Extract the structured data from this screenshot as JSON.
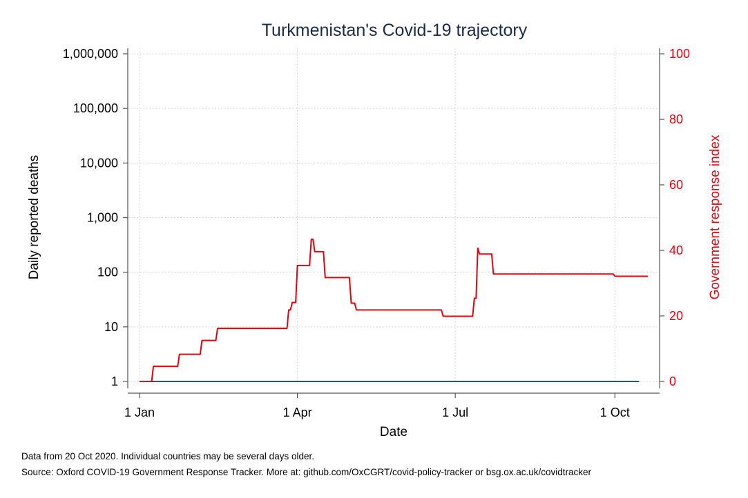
{
  "chart_data": {
    "type": "line",
    "title": "Turkmenistan's Covid-19 trajectory",
    "xlabel": "Date",
    "ylabel_left": "Daily reported deaths",
    "ylabel_right": "Government response index",
    "x_ticks": [
      "1 Jan",
      "1 Apr",
      "1 Jul",
      "1 Oct"
    ],
    "y_left_ticks": [
      "1",
      "10",
      "100",
      "1,000",
      "10,000",
      "100,000",
      "1,000,000"
    ],
    "y_left_scale": "log",
    "y_left_range": [
      1,
      1000000
    ],
    "y_right_ticks": [
      "0",
      "20",
      "40",
      "60",
      "80",
      "100"
    ],
    "y_right_range": [
      0,
      100
    ],
    "x_range": [
      "2020-01-01",
      "2020-10-20"
    ],
    "grid": true,
    "colors": {
      "deaths": "#1a5a96",
      "index": "#e8000b",
      "title": "#1a2b4a"
    },
    "series": [
      {
        "axis": "left",
        "points": [
          [
            "2020-01-01",
            1
          ],
          [
            "2020-10-15",
            1
          ]
        ]
      },
      {
        "axis": "right",
        "points": [
          [
            "2020-01-01",
            0
          ],
          [
            "2020-01-08",
            0
          ],
          [
            "2020-01-09",
            4.6
          ],
          [
            "2020-01-23",
            4.6
          ],
          [
            "2020-01-24",
            8.3
          ],
          [
            "2020-02-05",
            8.3
          ],
          [
            "2020-02-06",
            12.5
          ],
          [
            "2020-02-14",
            12.5
          ],
          [
            "2020-02-15",
            16.2
          ],
          [
            "2020-03-26",
            16.2
          ],
          [
            "2020-03-27",
            21.8
          ],
          [
            "2020-03-28",
            21.8
          ],
          [
            "2020-03-29",
            24.1
          ],
          [
            "2020-03-31",
            24.1
          ],
          [
            "2020-04-01",
            35.4
          ],
          [
            "2020-04-08",
            35.4
          ],
          [
            "2020-04-09",
            43.4
          ],
          [
            "2020-04-10",
            43.4
          ],
          [
            "2020-04-11",
            39.6
          ],
          [
            "2020-04-16",
            39.6
          ],
          [
            "2020-04-17",
            31.7
          ],
          [
            "2020-05-01",
            31.7
          ],
          [
            "2020-05-02",
            23.9
          ],
          [
            "2020-05-04",
            23.9
          ],
          [
            "2020-05-05",
            21.8
          ],
          [
            "2020-06-23",
            21.8
          ],
          [
            "2020-06-24",
            19.9
          ],
          [
            "2020-07-11",
            19.9
          ],
          [
            "2020-07-12",
            25.4
          ],
          [
            "2020-07-13",
            25.4
          ],
          [
            "2020-07-14",
            40.7
          ],
          [
            "2020-07-15",
            38.9
          ],
          [
            "2020-07-22",
            38.9
          ],
          [
            "2020-07-23",
            32.8
          ],
          [
            "2020-09-30",
            32.8
          ],
          [
            "2020-10-01",
            32.1
          ],
          [
            "2020-10-20",
            32.1
          ]
        ]
      }
    ]
  },
  "notes": {
    "line1": "Data from 20 Oct 2020. Individual countries may be several days older.",
    "line2": "Source: Oxford COVID-19 Government Response Tracker. More at: github.com/OxCGRT/covid-policy-tracker or bsg.ox.ac.uk/covidtracker"
  }
}
